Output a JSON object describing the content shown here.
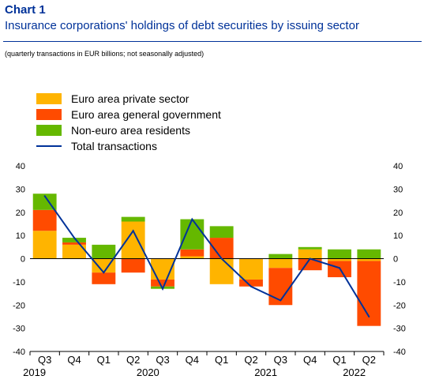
{
  "header": {
    "chart_label": "Chart 1",
    "title": "Insurance corporations' holdings of debt securities by issuing sector",
    "subtitle": "(quarterly transactions in EUR billions; not seasonally adjusted)"
  },
  "colors": {
    "private": "#ffb400",
    "government": "#ff4b00",
    "nonEuro": "#65b800",
    "total": "#003299",
    "accent": "#003299"
  },
  "chart_data": {
    "type": "bar",
    "stacked": true,
    "categories": [
      "Q3",
      "Q4",
      "Q1",
      "Q2",
      "Q3",
      "Q4",
      "Q1",
      "Q2",
      "Q3",
      "Q4",
      "Q1",
      "Q2"
    ],
    "year_labels": [
      "2019",
      "2020",
      "2021",
      "2022"
    ],
    "series": [
      {
        "name": "Euro area private sector",
        "kind": "bar",
        "color": "#ffb400",
        "values": [
          12,
          6,
          -6,
          16,
          -9,
          1,
          -11,
          -9,
          -4,
          4,
          -1,
          -1
        ]
      },
      {
        "name": "Euro area general government",
        "kind": "bar",
        "color": "#ff4b00",
        "values": [
          9,
          1,
          -5,
          -6,
          -3,
          3,
          9,
          -3,
          -16,
          -5,
          -7,
          -28
        ]
      },
      {
        "name": "Non-euro area residents",
        "kind": "bar",
        "color": "#65b800",
        "values": [
          7,
          2,
          6,
          2,
          -1,
          13,
          5,
          0,
          2,
          1,
          4,
          4
        ]
      },
      {
        "name": "Total transactions",
        "kind": "line",
        "color": "#003299",
        "values": [
          27,
          9,
          -6,
          12,
          -13,
          17,
          0,
          -12,
          -18,
          0,
          -4,
          -25
        ]
      }
    ],
    "ylim": [
      -40,
      40
    ],
    "yticks": [
      40,
      30,
      20,
      10,
      0,
      -10,
      -20,
      -30,
      -40
    ],
    "grid": false,
    "legend_position": "top-left"
  }
}
